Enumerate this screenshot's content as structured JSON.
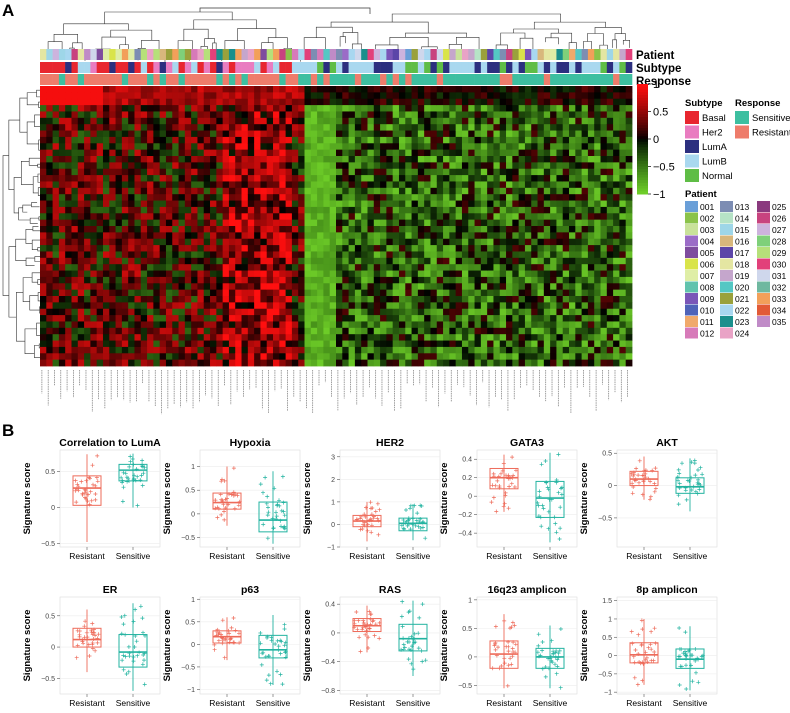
{
  "panel_a": {
    "label": "A",
    "track_labels": [
      "Patient",
      "Subtype",
      "Response"
    ],
    "color_scale": {
      "ticks": [
        "1",
        "0.5",
        "0",
        "−0.5",
        "−1"
      ]
    },
    "legend_subtype": {
      "title": "Subtype",
      "items": [
        {
          "label": "Basal",
          "color": "#e8262f"
        },
        {
          "label": "Her2",
          "color": "#e97cc0"
        },
        {
          "label": "LumA",
          "color": "#2c2f7f"
        },
        {
          "label": "LumB",
          "color": "#a9d8ef"
        },
        {
          "label": "Normal",
          "color": "#5fbd46"
        }
      ]
    },
    "legend_response": {
      "title": "Response",
      "items": [
        {
          "label": "Sensitive",
          "color": "#3dbfa0"
        },
        {
          "label": "Resistant",
          "color": "#ee7c6b"
        }
      ]
    },
    "legend_patient": {
      "title": "Patient",
      "items": [
        {
          "label": "001",
          "color": "#6a9fd8"
        },
        {
          "label": "002",
          "color": "#8bc34a"
        },
        {
          "label": "003",
          "color": "#c9e29a"
        },
        {
          "label": "004",
          "color": "#9b6cc7"
        },
        {
          "label": "005",
          "color": "#7e4c9e"
        },
        {
          "label": "006",
          "color": "#d9e44a"
        },
        {
          "label": "007",
          "color": "#dfeea6"
        },
        {
          "label": "008",
          "color": "#61c3ad"
        },
        {
          "label": "009",
          "color": "#7a56b8"
        },
        {
          "label": "010",
          "color": "#4f63b8"
        },
        {
          "label": "011",
          "color": "#f0a96b"
        },
        {
          "label": "012",
          "color": "#d77ab9"
        },
        {
          "label": "013",
          "color": "#7d8db3"
        },
        {
          "label": "014",
          "color": "#b6e3c6"
        },
        {
          "label": "015",
          "color": "#9ed6e8"
        },
        {
          "label": "016",
          "color": "#d8b77c"
        },
        {
          "label": "017",
          "color": "#5c45a8"
        },
        {
          "label": "018",
          "color": "#e4e6a2"
        },
        {
          "label": "019",
          "color": "#c5a6cc"
        },
        {
          "label": "020",
          "color": "#54c7c4"
        },
        {
          "label": "021",
          "color": "#9aa13c"
        },
        {
          "label": "022",
          "color": "#a8d7f0"
        },
        {
          "label": "023",
          "color": "#1a8f8c"
        },
        {
          "label": "024",
          "color": "#e9a3c6"
        },
        {
          "label": "025",
          "color": "#8a3a7e"
        },
        {
          "label": "026",
          "color": "#c8437f"
        },
        {
          "label": "027",
          "color": "#cdb3dd"
        },
        {
          "label": "028",
          "color": "#7fd07a"
        },
        {
          "label": "029",
          "color": "#b6e07a"
        },
        {
          "label": "030",
          "color": "#e2407a"
        },
        {
          "label": "031",
          "color": "#cfd7ec"
        },
        {
          "label": "032",
          "color": "#6fb8a0"
        },
        {
          "label": "033",
          "color": "#f2a05a"
        },
        {
          "label": "034",
          "color": "#e25a36"
        },
        {
          "label": "035",
          "color": "#c08bc7"
        }
      ]
    }
  },
  "panel_b": {
    "label": "B",
    "ylabel": "Signature score",
    "groups": [
      "Resistant",
      "Sensitive"
    ],
    "group_colors": {
      "Resistant": "#ee6b5a",
      "Sensitive": "#22b3a0"
    }
  },
  "chart_data": [
    {
      "type": "box",
      "title": "Correlation to LumA",
      "ylabel": "Signature score",
      "categories": [
        "Resistant",
        "Sensitive"
      ],
      "yticks": [
        -0.5,
        0,
        0.5
      ],
      "ylim": [
        -0.55,
        0.8
      ],
      "series": [
        {
          "name": "Resistant",
          "q1": 0.03,
          "median": 0.27,
          "q3": 0.44,
          "whisker_low": -0.48,
          "whisker_high": 0.74
        },
        {
          "name": "Sensitive",
          "q1": 0.37,
          "median": 0.52,
          "q3": 0.6,
          "whisker_low": 0.0,
          "whisker_high": 0.75
        }
      ]
    },
    {
      "type": "box",
      "title": "Hypoxia",
      "ylabel": "Signature score",
      "categories": [
        "Resistant",
        "Sensitive"
      ],
      "yticks": [
        -0.5,
        0,
        0.5,
        1
      ],
      "ylim": [
        -0.7,
        1.35
      ],
      "series": [
        {
          "name": "Resistant",
          "q1": 0.1,
          "median": 0.24,
          "q3": 0.44,
          "whisker_low": -0.25,
          "whisker_high": 1.0
        },
        {
          "name": "Sensitive",
          "q1": -0.38,
          "median": -0.13,
          "q3": 0.25,
          "whisker_low": -0.63,
          "whisker_high": 0.9
        }
      ]
    },
    {
      "type": "box",
      "title": "HER2",
      "ylabel": "Signature score",
      "categories": [
        "Resistant",
        "Sensitive"
      ],
      "yticks": [
        -1,
        0,
        1,
        2,
        3
      ],
      "ylim": [
        -1,
        3.3
      ],
      "series": [
        {
          "name": "Resistant",
          "q1": -0.1,
          "median": 0.15,
          "q3": 0.4,
          "whisker_low": -0.75,
          "whisker_high": 1.0
        },
        {
          "name": "Sensitive",
          "q1": -0.28,
          "median": 0.05,
          "q3": 0.28,
          "whisker_low": -0.7,
          "whisker_high": 0.9
        }
      ]
    },
    {
      "type": "box",
      "title": "GATA3",
      "ylabel": "Signature score",
      "categories": [
        "Resistant",
        "Sensitive"
      ],
      "yticks": [
        -0.4,
        -0.2,
        0,
        0.2,
        0.4
      ],
      "ylim": [
        -0.55,
        0.5
      ],
      "series": [
        {
          "name": "Resistant",
          "q1": 0.08,
          "median": 0.2,
          "q3": 0.3,
          "whisker_low": -0.17,
          "whisker_high": 0.45
        },
        {
          "name": "Sensitive",
          "q1": -0.23,
          "median": -0.02,
          "q3": 0.16,
          "whisker_low": -0.5,
          "whisker_high": 0.47
        }
      ]
    },
    {
      "type": "box",
      "title": "AKT",
      "ylabel": "Signature score",
      "categories": [
        "Resistant",
        "Sensitive"
      ],
      "yticks": [
        -0.5,
        0,
        0.5
      ],
      "ylim": [
        -0.95,
        0.55
      ],
      "series": [
        {
          "name": "Resistant",
          "q1": 0.0,
          "median": 0.1,
          "q3": 0.22,
          "whisker_low": -0.22,
          "whisker_high": 0.45
        },
        {
          "name": "Sensitive",
          "q1": -0.12,
          "median": -0.02,
          "q3": 0.12,
          "whisker_low": -0.4,
          "whisker_high": 0.42
        }
      ]
    },
    {
      "type": "box",
      "title": "ER",
      "ylabel": "Signature score",
      "categories": [
        "Resistant",
        "Sensitive"
      ],
      "yticks": [
        -0.5,
        0,
        0.5
      ],
      "ylim": [
        -0.75,
        0.8
      ],
      "series": [
        {
          "name": "Resistant",
          "q1": 0.0,
          "median": 0.12,
          "q3": 0.3,
          "whisker_low": -0.4,
          "whisker_high": 0.6
        },
        {
          "name": "Sensitive",
          "q1": -0.32,
          "median": -0.08,
          "q3": 0.2,
          "whisker_low": -0.7,
          "whisker_high": 0.7
        }
      ]
    },
    {
      "type": "box",
      "title": "p63",
      "ylabel": "Signature score",
      "categories": [
        "Resistant",
        "Sensitive"
      ],
      "yticks": [
        -1,
        -0.5,
        0,
        0.5,
        1
      ],
      "ylim": [
        -1.1,
        1.05
      ],
      "series": [
        {
          "name": "Resistant",
          "q1": 0.03,
          "median": 0.17,
          "q3": 0.3,
          "whisker_low": -0.35,
          "whisker_high": 0.6
        },
        {
          "name": "Sensitive",
          "q1": -0.3,
          "median": -0.12,
          "q3": 0.2,
          "whisker_low": -0.9,
          "whisker_high": 0.65
        }
      ]
    },
    {
      "type": "box",
      "title": "RAS",
      "ylabel": "Signature score",
      "categories": [
        "Resistant",
        "Sensitive"
      ],
      "yticks": [
        -0.8,
        -0.4,
        0,
        0.4
      ],
      "ylim": [
        -0.85,
        0.5
      ],
      "series": [
        {
          "name": "Resistant",
          "q1": 0.02,
          "median": 0.1,
          "q3": 0.2,
          "whisker_low": -0.27,
          "whisker_high": 0.38
        },
        {
          "name": "Sensitive",
          "q1": -0.25,
          "median": -0.08,
          "q3": 0.12,
          "whisker_low": -0.6,
          "whisker_high": 0.45
        }
      ]
    },
    {
      "type": "box",
      "title": "16q23 amplicon",
      "ylabel": "Signature score",
      "categories": [
        "Resistant",
        "Sensitive"
      ],
      "yticks": [
        -0.5,
        0,
        0.5,
        1
      ],
      "ylim": [
        -0.65,
        1.05
      ],
      "series": [
        {
          "name": "Resistant",
          "q1": -0.2,
          "median": 0.05,
          "q3": 0.28,
          "whisker_low": -0.55,
          "whisker_high": 0.75
        },
        {
          "name": "Sensitive",
          "q1": -0.2,
          "median": 0.0,
          "q3": 0.15,
          "whisker_low": -0.55,
          "whisker_high": 0.55
        }
      ]
    },
    {
      "type": "box",
      "title": "8p amplicon",
      "ylabel": "Signature score",
      "categories": [
        "Resistant",
        "Sensitive"
      ],
      "yticks": [
        -1,
        -0.5,
        0,
        0.5,
        1,
        1.5
      ],
      "ylim": [
        -1.05,
        1.6
      ],
      "series": [
        {
          "name": "Resistant",
          "q1": -0.2,
          "median": 0.02,
          "q3": 0.35,
          "whisker_low": -0.8,
          "whisker_high": 1.0
        },
        {
          "name": "Sensitive",
          "q1": -0.35,
          "median": -0.1,
          "q3": 0.18,
          "whisker_low": -0.95,
          "whisker_high": 0.8
        }
      ]
    }
  ]
}
